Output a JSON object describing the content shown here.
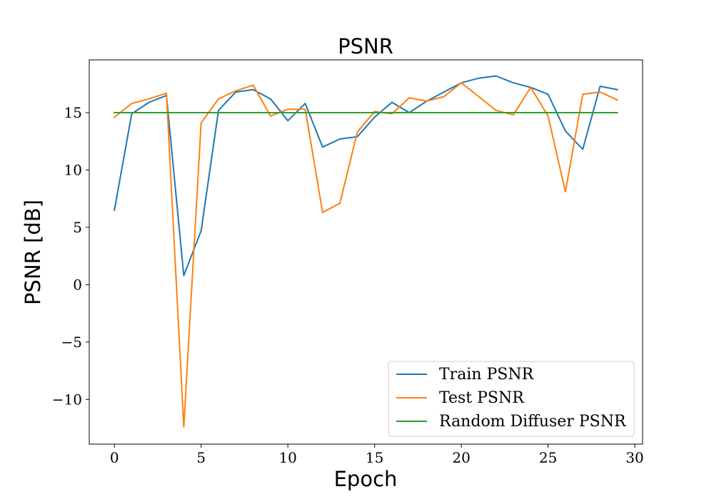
{
  "chart_data": {
    "type": "line",
    "title": "PSNR",
    "xlabel": "Epoch",
    "ylabel": "PSNR [dB]",
    "xlim": [
      -1.45,
      30.45
    ],
    "ylim": [
      -13.9,
      19.6
    ],
    "xticks": [
      0,
      5,
      10,
      15,
      20,
      25,
      30
    ],
    "xtick_labels": [
      "0",
      "5",
      "10",
      "15",
      "20",
      "25",
      "30"
    ],
    "yticks": [
      -10,
      -5,
      0,
      5,
      10,
      15
    ],
    "ytick_labels": [
      "−10",
      "−5",
      "0",
      "5",
      "10",
      "15"
    ],
    "grid": false,
    "legend_position": "lower-right",
    "x": [
      0,
      1,
      2,
      3,
      4,
      5,
      6,
      7,
      8,
      9,
      10,
      11,
      12,
      13,
      14,
      15,
      16,
      17,
      18,
      19,
      20,
      21,
      22,
      23,
      24,
      25,
      26,
      27,
      28,
      29
    ],
    "series": [
      {
        "name": "Train PSNR",
        "color": "#1f77b4",
        "values": [
          6.5,
          14.9,
          15.9,
          16.5,
          0.8,
          4.7,
          15.2,
          16.8,
          17.0,
          16.2,
          14.3,
          15.8,
          12.0,
          12.7,
          12.9,
          14.6,
          15.9,
          15.0,
          16.0,
          16.8,
          17.6,
          18.0,
          18.2,
          17.6,
          17.2,
          16.6,
          13.4,
          11.8,
          17.3,
          17.0
        ]
      },
      {
        "name": "Test PSNR",
        "color": "#ff7f0e",
        "values": [
          14.6,
          15.8,
          16.2,
          16.7,
          -12.4,
          14.1,
          16.2,
          16.9,
          17.4,
          14.7,
          15.3,
          15.3,
          6.3,
          7.1,
          13.3,
          15.1,
          14.9,
          16.3,
          16.0,
          16.4,
          17.6,
          16.4,
          15.2,
          14.8,
          17.2,
          14.7,
          8.1,
          16.6,
          16.8,
          16.1
        ]
      },
      {
        "name": "Random Diffuser PSNR",
        "color": "#2ca02c",
        "values": [
          15.0,
          15.0,
          15.0,
          15.0,
          15.0,
          15.0,
          15.0,
          15.0,
          15.0,
          15.0,
          15.0,
          15.0,
          15.0,
          15.0,
          15.0,
          15.0,
          15.0,
          15.0,
          15.0,
          15.0,
          15.0,
          15.0,
          15.0,
          15.0,
          15.0,
          15.0,
          15.0,
          15.0,
          15.0,
          15.0
        ]
      }
    ]
  }
}
